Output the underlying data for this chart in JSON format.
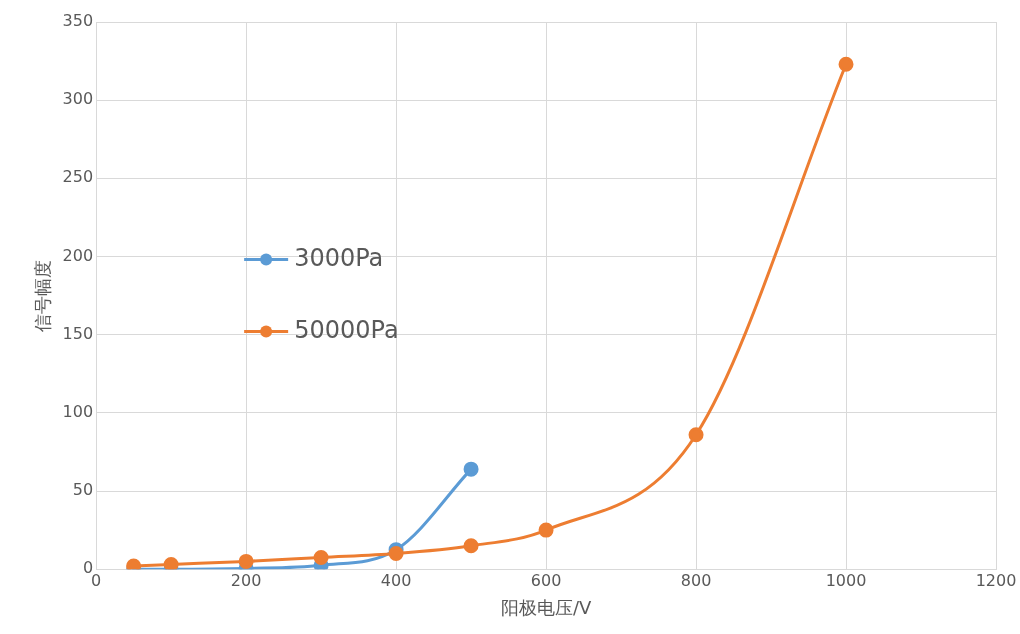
{
  "chart_data": {
    "type": "line",
    "xlabel": "阳极电压/V",
    "ylabel": "信号幅度",
    "xlim": [
      0,
      1200
    ],
    "xticks": [
      0,
      200,
      400,
      600,
      800,
      1000,
      1200
    ],
    "ylim": [
      0,
      350
    ],
    "yticks": [
      0,
      50,
      100,
      150,
      200,
      250,
      300,
      350
    ],
    "grid": true,
    "legend": "left",
    "marker": "circle",
    "line_style": "solid",
    "series": [
      {
        "name": "3000Pa",
        "color": "#5b9bd5",
        "x": [
          50,
          100,
          200,
          300,
          400,
          500
        ],
        "values": [
          0,
          0,
          0.5,
          2.5,
          12.5,
          64
        ]
      },
      {
        "name": "50000Pa",
        "color": "#ed7d31",
        "x": [
          50,
          100,
          200,
          300,
          400,
          500,
          600,
          800,
          1000
        ],
        "values": [
          2,
          3,
          5,
          7.5,
          10,
          15,
          25,
          86,
          323
        ]
      }
    ]
  }
}
